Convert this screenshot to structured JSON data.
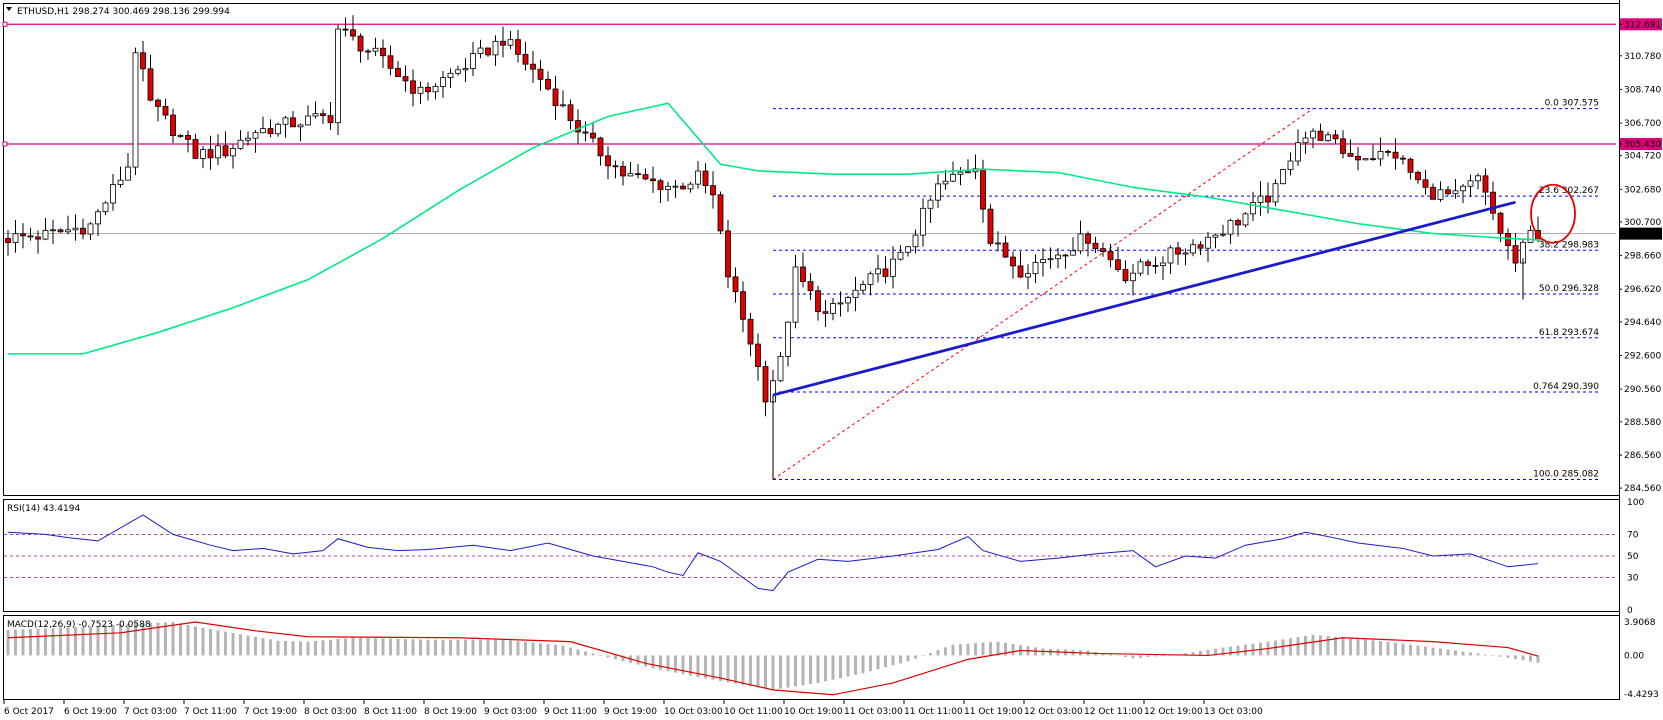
{
  "colors": {
    "resistance": "#e0007a",
    "fib": "#0000ff",
    "trendline": "#1a1acc",
    "ma": "#00e887",
    "fib_diagonal": "#ff0000",
    "rsi_line": "#1a1acc",
    "rsi_levels": "#b0006b",
    "macd_signal": "#e00000",
    "macd_hist": "#b4b4b4",
    "bull_candle": "#ffffff",
    "bear_candle": "#e00000",
    "circle": "#e00000",
    "current_price": "#808080"
  },
  "chart_data": [
    {
      "type": "candlestick",
      "title": "ETHUSD,H1  298.274 300.469 298.136 299.994",
      "yticks": [
        "312.691",
        "310.780",
        "308.740",
        "306.700",
        "305.430",
        "304.720",
        "302.680",
        "300.700",
        "299.994",
        "298.660",
        "296.620",
        "294.640",
        "292.600",
        "290.560",
        "288.580",
        "286.560",
        "284.560"
      ],
      "ylim": [
        284.2,
        313.8
      ],
      "xticks": [
        "6 Oct 2017",
        "6 Oct 19:00",
        "7 Oct 03:00",
        "7 Oct 11:00",
        "7 Oct 19:00",
        "8 Oct 03:00",
        "8 Oct 11:00",
        "8 Oct 19:00",
        "9 Oct 03:00",
        "9 Oct 11:00",
        "9 Oct 19:00",
        "10 Oct 03:00",
        "10 Oct 11:00",
        "10 Oct 19:00",
        "11 Oct 03:00",
        "11 Oct 11:00",
        "11 Oct 19:00",
        "12 Oct 03:00",
        "12 Oct 11:00",
        "12 Oct 19:00",
        "13 Oct 03:00"
      ],
      "resistance_levels": [
        312.691,
        305.43
      ],
      "current_price": 299.994,
      "fib_levels": [
        {
          "label": "0.0",
          "value": 307.575
        },
        {
          "label": "23.6",
          "value": 302.267
        },
        {
          "label": "38.2",
          "value": 298.983
        },
        {
          "label": "50.0",
          "value": 296.328
        },
        {
          "label": "61.8",
          "value": 293.674
        },
        {
          "label": "0.764",
          "value": 290.39
        },
        {
          "label": "100.0",
          "value": 285.082
        }
      ],
      "trendline": {
        "from": {
          "bar": 102,
          "price": 290.2
        },
        "to": {
          "bar": 201,
          "price": 301.9
        }
      },
      "fib_diagonal": {
        "from": {
          "bar": 102,
          "price": 285.08
        },
        "to": {
          "bar": 174,
          "price": 307.575
        }
      },
      "ma": [
        [
          0,
          292.7
        ],
        [
          10,
          292.7
        ],
        [
          20,
          294.0
        ],
        [
          30,
          295.5
        ],
        [
          40,
          297.2
        ],
        [
          50,
          299.7
        ],
        [
          60,
          302.6
        ],
        [
          70,
          305.2
        ],
        [
          80,
          307.1
        ],
        [
          88,
          307.9
        ],
        [
          95,
          304.2
        ],
        [
          100,
          303.8
        ],
        [
          110,
          303.6
        ],
        [
          120,
          303.6
        ],
        [
          130,
          303.9
        ],
        [
          140,
          303.7
        ],
        [
          150,
          302.8
        ],
        [
          160,
          302.2
        ],
        [
          170,
          301.4
        ],
        [
          180,
          300.6
        ],
        [
          190,
          300.0
        ],
        [
          200,
          299.7
        ],
        [
          205,
          299.6
        ]
      ],
      "price_path": [
        [
          0,
          299.7
        ],
        [
          6,
          299.9
        ],
        [
          12,
          300.5
        ],
        [
          17,
          304.1
        ],
        [
          18,
          311.2
        ],
        [
          20,
          307.9
        ],
        [
          26,
          304.8
        ],
        [
          30,
          305.0
        ],
        [
          34,
          306.2
        ],
        [
          40,
          306.8
        ],
        [
          44,
          307.1
        ],
        [
          45,
          312.4
        ],
        [
          50,
          310.8
        ],
        [
          56,
          308.5
        ],
        [
          62,
          310.2
        ],
        [
          67,
          311.8
        ],
        [
          72,
          309.4
        ],
        [
          78,
          305.8
        ],
        [
          83,
          303.6
        ],
        [
          86,
          303.2
        ],
        [
          90,
          302.8
        ],
        [
          93,
          303.4
        ],
        [
          95,
          302.2
        ],
        [
          97,
          297.5
        ],
        [
          100,
          293.5
        ],
        [
          102,
          290.2
        ],
        [
          104,
          292.2
        ],
        [
          106,
          297.6
        ],
        [
          110,
          295.0
        ],
        [
          115,
          296.8
        ],
        [
          120,
          298.5
        ],
        [
          125,
          302.8
        ],
        [
          130,
          304.2
        ],
        [
          132,
          299.5
        ],
        [
          136,
          297.8
        ],
        [
          140,
          298.6
        ],
        [
          145,
          299.8
        ],
        [
          150,
          297.5
        ],
        [
          155,
          298.5
        ],
        [
          160,
          299.5
        ],
        [
          165,
          300.8
        ],
        [
          170,
          302.6
        ],
        [
          173,
          305.8
        ],
        [
          176,
          306.0
        ],
        [
          180,
          304.7
        ],
        [
          186,
          304.8
        ],
        [
          190,
          302.6
        ],
        [
          194,
          302.2
        ],
        [
          197,
          303.3
        ],
        [
          200,
          300.1
        ],
        [
          202,
          298.2
        ],
        [
          204,
          299.99
        ]
      ]
    },
    {
      "type": "line",
      "title": "RSI(14) 43.4194",
      "yticks": [
        "100",
        "70",
        "50",
        "30",
        "0"
      ],
      "levels": [
        70,
        50,
        30
      ],
      "ylim": [
        0,
        100
      ],
      "values": [
        [
          0,
          72
        ],
        [
          5,
          70
        ],
        [
          8,
          67
        ],
        [
          12,
          64
        ],
        [
          16,
          80
        ],
        [
          18,
          88
        ],
        [
          22,
          70
        ],
        [
          27,
          60
        ],
        [
          30,
          55
        ],
        [
          34,
          57
        ],
        [
          38,
          52
        ],
        [
          42,
          55
        ],
        [
          44,
          66
        ],
        [
          48,
          58
        ],
        [
          52,
          55
        ],
        [
          56,
          56
        ],
        [
          62,
          60
        ],
        [
          67,
          55
        ],
        [
          72,
          62
        ],
        [
          78,
          50
        ],
        [
          82,
          45
        ],
        [
          86,
          40
        ],
        [
          88,
          35
        ],
        [
          90,
          32
        ],
        [
          92,
          53
        ],
        [
          95,
          45
        ],
        [
          98,
          30
        ],
        [
          100,
          20
        ],
        [
          102,
          18
        ],
        [
          104,
          35
        ],
        [
          108,
          47
        ],
        [
          112,
          45
        ],
        [
          118,
          50
        ],
        [
          124,
          56
        ],
        [
          128,
          68
        ],
        [
          130,
          55
        ],
        [
          135,
          45
        ],
        [
          140,
          48
        ],
        [
          145,
          52
        ],
        [
          150,
          55
        ],
        [
          153,
          40
        ],
        [
          157,
          50
        ],
        [
          161,
          48
        ],
        [
          165,
          60
        ],
        [
          170,
          66
        ],
        [
          173,
          72
        ],
        [
          176,
          68
        ],
        [
          180,
          62
        ],
        [
          186,
          57
        ],
        [
          190,
          50
        ],
        [
          195,
          52
        ],
        [
          200,
          40
        ],
        [
          204,
          43
        ]
      ]
    },
    {
      "type": "bar+line",
      "title": "MACD(12,26,9) -0.7523 -0.0588",
      "yticks": [
        "3.9068",
        "0.00",
        "-4.4293"
      ],
      "ylim": [
        -4.4293,
        3.9068
      ],
      "histogram": [
        [
          0,
          2.6
        ],
        [
          10,
          2.9
        ],
        [
          16,
          3.2
        ],
        [
          22,
          3.4
        ],
        [
          26,
          2.8
        ],
        [
          36,
          1.5
        ],
        [
          40,
          1.4
        ],
        [
          46,
          1.8
        ],
        [
          56,
          1.6
        ],
        [
          66,
          1.6
        ],
        [
          74,
          1.0
        ],
        [
          80,
          -0.2
        ],
        [
          86,
          -1.3
        ],
        [
          92,
          -2.2
        ],
        [
          98,
          -3.0
        ],
        [
          102,
          -3.5
        ],
        [
          108,
          -2.8
        ],
        [
          114,
          -1.8
        ],
        [
          120,
          -0.6
        ],
        [
          126,
          1.1
        ],
        [
          132,
          1.4
        ],
        [
          138,
          0.7
        ],
        [
          144,
          0.5
        ],
        [
          150,
          -0.3
        ],
        [
          156,
          0.1
        ],
        [
          162,
          0.8
        ],
        [
          168,
          1.4
        ],
        [
          174,
          2.1
        ],
        [
          180,
          1.7
        ],
        [
          186,
          1.2
        ],
        [
          192,
          0.6
        ],
        [
          198,
          0.0
        ],
        [
          204,
          -0.75
        ]
      ],
      "signal": [
        [
          0,
          1.8
        ],
        [
          15,
          2.3
        ],
        [
          25,
          3.4
        ],
        [
          33,
          2.5
        ],
        [
          40,
          1.9
        ],
        [
          60,
          1.8
        ],
        [
          75,
          1.4
        ],
        [
          85,
          -0.8
        ],
        [
          95,
          -2.3
        ],
        [
          102,
          -3.5
        ],
        [
          110,
          -4.0
        ],
        [
          118,
          -2.8
        ],
        [
          128,
          -0.4
        ],
        [
          135,
          0.5
        ],
        [
          145,
          0.2
        ],
        [
          160,
          0.0
        ],
        [
          168,
          0.7
        ],
        [
          178,
          1.8
        ],
        [
          190,
          1.4
        ],
        [
          200,
          0.8
        ],
        [
          204,
          -0.06
        ]
      ]
    }
  ]
}
